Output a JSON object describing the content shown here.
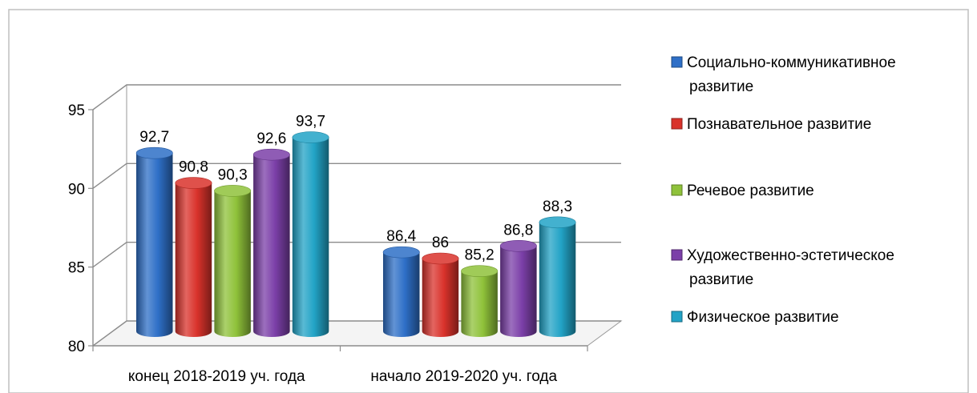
{
  "chart_data": {
    "type": "bar",
    "categories": [
      "конец 2018-2019 уч. года",
      "начало 2019-2020 уч. года"
    ],
    "series": [
      {
        "name": "Социально-коммуникативное развитие",
        "name_lines": [
          "Социально-коммуникативное",
          "развитие"
        ],
        "values": [
          92.7,
          86.4
        ],
        "labels": [
          "92,7",
          "86,4"
        ],
        "color": "#2e6fc7"
      },
      {
        "name": "Познавательное развитие",
        "name_lines": [
          "Познавательное развитие"
        ],
        "values": [
          90.8,
          86.0
        ],
        "labels": [
          "90,8",
          "86"
        ],
        "color": "#d9322b"
      },
      {
        "name": "Речевое развитие",
        "name_lines": [
          "Речевое развитие"
        ],
        "values": [
          90.3,
          85.2
        ],
        "labels": [
          "90,3",
          "85,2"
        ],
        "color": "#8fc23a"
      },
      {
        "name": "Художественно-эстетическое развитие",
        "name_lines": [
          "Художественно-эстетическое",
          "развитие"
        ],
        "values": [
          92.6,
          86.8
        ],
        "labels": [
          "92,6",
          "86,8"
        ],
        "color": "#7b3fa8"
      },
      {
        "name": "Физическое развитие",
        "name_lines": [
          "Физическое развитие"
        ],
        "values": [
          93.7,
          88.3
        ],
        "labels": [
          "93,7",
          "88,3"
        ],
        "color": "#22a3c6"
      }
    ],
    "yticks": [
      80,
      85,
      90,
      95
    ],
    "ylim": [
      80,
      95
    ],
    "grid": true,
    "legend_position": "right",
    "bar_shape": "cylinder",
    "title": "",
    "xlabel": "",
    "ylabel": ""
  }
}
